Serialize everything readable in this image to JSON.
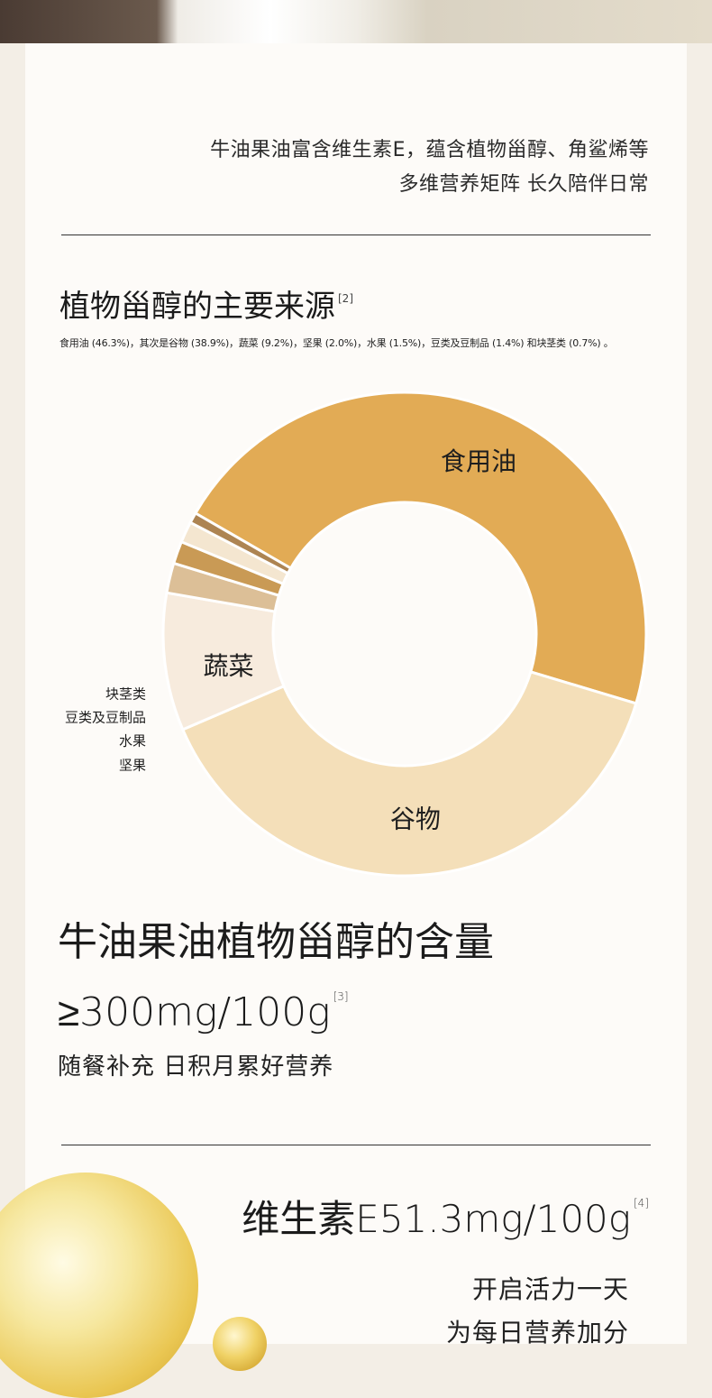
{
  "intro": {
    "line1": "牛油果油富含维生素E，蕴含植物甾醇、角鲨烯等",
    "line2": "多维营养矩阵 长久陪伴日常"
  },
  "section1": {
    "title": "植物甾醇的主要来源",
    "ref": "[2]",
    "source_note": "食用油 (46.3%)，其次是谷物 (38.9%)，蔬菜 (9.2%)，坚果 (2.0%)，水果 (1.5%)，豆类及豆制品 (1.4%) 和块茎类 (0.7%) 。"
  },
  "chart_data": {
    "type": "pie",
    "title": "植物甾醇的主要来源",
    "unit": "%",
    "categories": [
      "食用油",
      "谷物",
      "蔬菜",
      "坚果",
      "水果",
      "豆类及豆制品",
      "块茎类"
    ],
    "values": [
      46.3,
      38.9,
      9.2,
      2.0,
      1.5,
      1.4,
      0.7
    ],
    "colors": [
      "#e2ab55",
      "#f4dfb9",
      "#f7ebdd",
      "#dcbf97",
      "#c99a55",
      "#f4e6d0",
      "#ad8452"
    ],
    "donut": true,
    "labels_outside": [
      "块茎类",
      "豆类及豆制品",
      "水果",
      "坚果"
    ]
  },
  "section2": {
    "heading_line1": "牛油果油植物甾醇的含量",
    "heading_line2": "≥300mg/100g",
    "ref": "[3]",
    "tagline": "随餐补充  日积月累好营养"
  },
  "section3": {
    "vitamin": "维生素E51.3mg/100g",
    "ref": "[4]",
    "slogan_line1": "开启活力一天",
    "slogan_line2": "为每日营养加分"
  }
}
